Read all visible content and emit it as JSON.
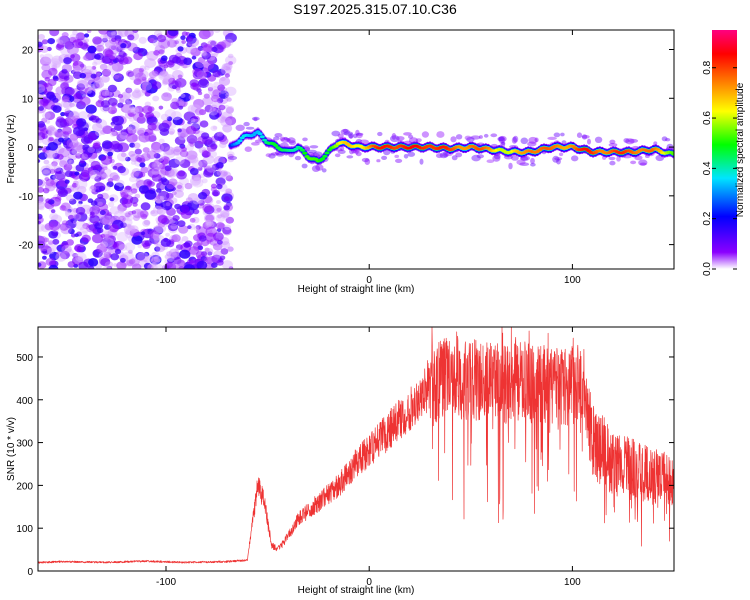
{
  "title": "S197.2025.315.07.10.C36",
  "chart_data": [
    {
      "type": "heatmap",
      "xlabel": "Height of straight line (km)",
      "ylabel": "Frequency (Hz)",
      "xlim": [
        -163,
        150
      ],
      "ylim": [
        -25,
        24
      ],
      "xticks": [
        -100,
        0,
        100
      ],
      "yticks": [
        -20,
        -10,
        0,
        10,
        20
      ],
      "colorbar": {
        "label": "Normalized spectral amplitude",
        "range": [
          0,
          0.95
        ],
        "ticks": [
          0.0,
          0.2,
          0.4,
          0.6,
          0.8
        ],
        "colors": [
          "#ffffff",
          "#8b00ff",
          "#0000ff",
          "#00e5ff",
          "#00ff00",
          "#ffff00",
          "#ff8000",
          "#ff0000",
          "#ff0080"
        ]
      },
      "noise_region_x": [
        -163,
        -68
      ],
      "ridge": {
        "x": [
          -68,
          -62,
          -55,
          -50,
          -45,
          -40,
          -35,
          -30,
          -25,
          -20,
          -15,
          -10,
          -5,
          0,
          10,
          20,
          30,
          40,
          50,
          60,
          70,
          80,
          90,
          100,
          110,
          120,
          130,
          140,
          150
        ],
        "freq": [
          0,
          2,
          3,
          1,
          0,
          -1,
          0,
          -2,
          -3,
          -1,
          1,
          0.5,
          0,
          0,
          0,
          0,
          0,
          -0.3,
          0,
          -0.5,
          -1,
          -1,
          0,
          0,
          -1,
          -1,
          -1,
          -0.5,
          -1.5
        ],
        "amplitude": [
          0.25,
          0.35,
          0.4,
          0.45,
          0.45,
          0.5,
          0.45,
          0.5,
          0.55,
          0.55,
          0.6,
          0.7,
          0.7,
          0.75,
          0.9,
          0.85,
          0.9,
          0.8,
          0.8,
          0.75,
          0.6,
          0.85,
          0.75,
          0.8,
          0.85,
          0.8,
          0.85,
          0.75,
          0.6
        ]
      }
    },
    {
      "type": "line",
      "xlabel": "Height of straight line (km)",
      "ylabel": "SNR (10 * v/v)",
      "xlim": [
        -163,
        150
      ],
      "ylim": [
        0,
        570
      ],
      "xticks": [
        -100,
        0,
        100
      ],
      "yticks": [
        0,
        100,
        200,
        300,
        400,
        500
      ],
      "series": [
        {
          "name": "SNR",
          "color": "#ee3333",
          "x": [
            -163,
            -150,
            -130,
            -110,
            -90,
            -70,
            -60,
            -55,
            -52,
            -48,
            -45,
            -40,
            -35,
            -30,
            -25,
            -20,
            -15,
            -10,
            -5,
            0,
            10,
            20,
            30,
            40,
            50,
            60,
            70,
            80,
            90,
            100,
            105,
            110,
            115,
            120,
            130,
            140,
            150
          ],
          "y": [
            20,
            22,
            20,
            23,
            20,
            22,
            25,
            200,
            170,
            60,
            50,
            80,
            120,
            140,
            160,
            180,
            200,
            230,
            260,
            280,
            330,
            380,
            440,
            450,
            445,
            440,
            440,
            440,
            430,
            430,
            420,
            300,
            280,
            250,
            240,
            220,
            210
          ]
        }
      ]
    }
  ]
}
